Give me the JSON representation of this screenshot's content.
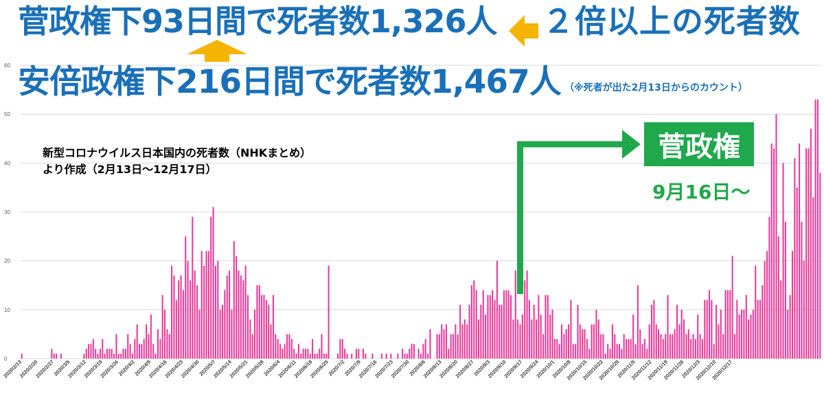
{
  "headline": {
    "suga": "菅政権下93日間で死者数1,326人",
    "comparison": "２倍以上の死者数",
    "abe": "安倍政権下216日間で死者数1,467人",
    "note": "（※死者が出た2月13日からのカウント）"
  },
  "source_note": {
    "line1": "新型コロナウイルス日本国内の死者数（NHKまとめ）",
    "line2": "より作成（2月13日～12月17日）"
  },
  "suga_marker": {
    "label": "菅政権",
    "start_label": "9月16日～",
    "start_date": "2020-09-16"
  },
  "colors": {
    "bar": "#e8399a",
    "headline": "#1a70b8",
    "arrow_orange": "#f5b400",
    "arrow_green": "#1fa84c"
  },
  "chart_data": {
    "type": "bar",
    "title": "",
    "xlabel": "",
    "ylabel": "",
    "ylim": [
      0,
      60
    ],
    "yticks": [
      0,
      10,
      20,
      30,
      40,
      50,
      60
    ],
    "grid": true,
    "x_start": "2020/2/13",
    "x_end": "2020/12/17",
    "xtick_labels": [
      "2020/2/13",
      "2020/2/20",
      "2020/2/27",
      "2020/3/5",
      "2020/3/12",
      "2020/3/19",
      "2020/3/26",
      "2020/4/2",
      "2020/4/9",
      "2020/4/16",
      "2020/4/23",
      "2020/4/30",
      "2020/5/7",
      "2020/5/14",
      "2020/5/21",
      "2020/5/28",
      "2020/6/4",
      "2020/6/11",
      "2020/6/18",
      "2020/6/25",
      "2020/7/2",
      "2020/7/9",
      "2020/7/16",
      "2020/7/23",
      "2020/7/30",
      "2020/8/6",
      "2020/8/13",
      "2020/8/20",
      "2020/8/27",
      "2020/9/3",
      "2020/9/10",
      "2020/9/17",
      "2020/9/24",
      "2020/10/1",
      "2020/10/8",
      "2020/10/15",
      "2020/10/22",
      "2020/10/29",
      "2020/11/5",
      "2020/11/12",
      "2020/11/19",
      "2020/11/26",
      "2020/12/3",
      "2020/12/10",
      "2020/12/17"
    ],
    "daily_deaths": [
      1,
      0,
      0,
      0,
      0,
      0,
      0,
      0,
      0,
      0,
      0,
      0,
      0,
      2,
      1,
      1,
      0,
      1,
      0,
      0,
      0,
      0,
      0,
      0,
      0,
      0,
      0,
      1,
      2,
      3,
      3,
      4,
      2,
      1,
      2,
      4,
      1,
      2,
      2,
      2,
      1,
      5,
      1,
      1,
      2,
      2,
      5,
      3,
      1,
      4,
      7,
      3,
      3,
      4,
      7,
      5,
      9,
      3,
      1,
      6,
      4,
      13,
      10,
      6,
      5,
      19,
      17,
      12,
      16,
      17,
      14,
      25,
      20,
      16,
      29,
      18,
      15,
      10,
      22,
      19,
      22,
      22,
      29,
      31,
      19,
      20,
      10,
      11,
      14,
      17,
      18,
      10,
      24,
      21,
      18,
      17,
      16,
      19,
      13,
      8,
      5,
      10,
      15,
      15,
      13,
      13,
      12,
      11,
      7,
      13,
      5,
      4,
      3,
      2,
      3,
      5,
      5,
      4,
      2,
      1,
      3,
      1,
      2,
      2,
      2,
      1,
      4,
      1,
      1,
      2,
      5,
      1,
      1,
      19,
      0,
      0,
      0,
      1,
      4,
      4,
      2,
      1,
      0,
      1,
      0,
      2,
      2,
      0,
      2,
      1,
      0,
      0,
      1,
      0,
      0,
      0,
      1,
      0,
      1,
      0,
      1,
      0,
      0,
      1,
      0,
      2,
      1,
      1,
      2,
      3,
      3,
      0,
      2,
      1,
      3,
      4,
      1,
      6,
      0,
      0,
      5,
      5,
      7,
      6,
      7,
      2,
      5,
      5,
      7,
      5,
      11,
      7,
      8,
      7,
      11,
      15,
      16,
      14,
      8,
      11,
      14,
      9,
      13,
      13,
      14,
      12,
      20,
      11,
      11,
      14,
      14,
      14,
      13,
      8,
      18,
      8,
      7,
      9,
      16,
      18,
      12,
      8,
      11,
      8,
      13,
      9,
      5,
      13,
      13,
      9,
      10,
      4,
      4,
      3,
      7,
      5,
      6,
      7,
      12,
      3,
      3,
      11,
      7,
      6,
      6,
      4,
      2,
      7,
      7,
      10,
      8,
      5,
      5,
      1,
      3,
      2,
      7,
      5,
      3,
      3,
      2,
      5,
      4,
      4,
      4,
      9,
      3,
      15,
      6,
      3,
      4,
      2,
      7,
      11,
      12,
      7,
      6,
      5,
      4,
      5,
      13,
      5,
      5,
      6,
      11,
      7,
      10,
      8,
      5,
      6,
      4,
      5,
      4,
      9,
      5,
      4,
      12,
      12,
      14,
      12,
      3,
      11,
      7,
      10,
      5,
      14,
      14,
      14,
      21,
      5,
      12,
      9,
      10,
      10,
      13,
      8,
      9,
      10,
      19,
      12,
      12,
      15,
      20,
      22,
      29,
      44,
      43,
      50,
      25,
      16,
      40,
      28,
      10,
      13,
      22,
      41,
      35,
      44,
      28,
      20,
      43,
      43,
      47,
      33,
      53,
      53,
      38
    ],
    "annotations": [
      "菅政権",
      "9月16日～"
    ]
  }
}
